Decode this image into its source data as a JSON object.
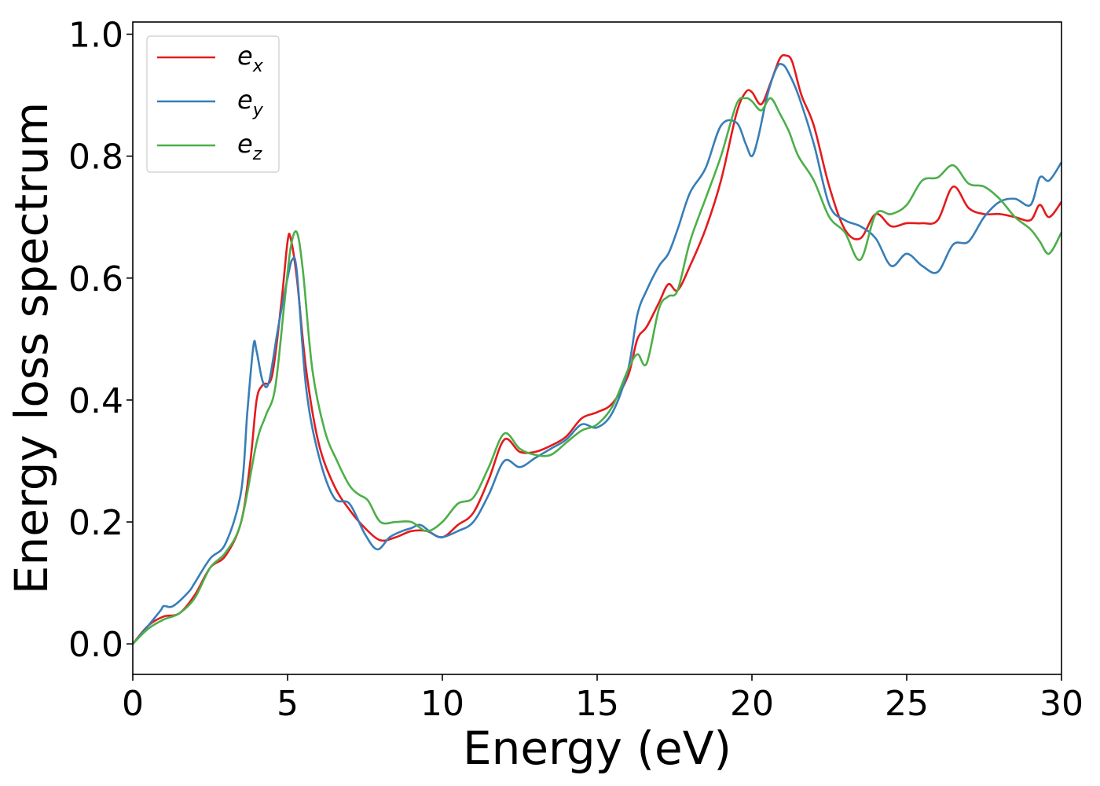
{
  "chart_data": {
    "type": "line",
    "title": "",
    "xlabel": "Energy (eV)",
    "ylabel": "Energy loss spectrum",
    "xlim": [
      0,
      30
    ],
    "ylim": [
      -0.05,
      1.02
    ],
    "xticks": [
      0,
      5,
      10,
      15,
      20,
      25,
      30
    ],
    "xtick_labels": [
      "0",
      "5",
      "10",
      "15",
      "20",
      "25",
      "30"
    ],
    "yticks": [
      0.0,
      0.2,
      0.4,
      0.6,
      0.8,
      1.0
    ],
    "ytick_labels": [
      "0.0",
      "0.2",
      "0.4",
      "0.6",
      "0.8",
      "1.0"
    ],
    "grid": false,
    "legend_position": "top-left",
    "series": [
      {
        "name": "e_x",
        "label_base": "e",
        "label_sub": "x",
        "color": "#e41a1c",
        "x": [
          0,
          0.5,
          1.0,
          1.5,
          2.0,
          2.5,
          3.0,
          3.5,
          3.8,
          4.0,
          4.2,
          4.5,
          4.8,
          5.0,
          5.1,
          5.3,
          5.6,
          6.0,
          6.5,
          7.0,
          7.5,
          8.0,
          8.5,
          9.0,
          9.5,
          10.0,
          10.5,
          11.0,
          11.5,
          12.0,
          12.5,
          13.0,
          13.5,
          14.0,
          14.5,
          15.0,
          15.5,
          16.0,
          16.3,
          16.6,
          17.0,
          17.3,
          17.6,
          18.0,
          18.5,
          19.0,
          19.5,
          19.8,
          20.0,
          20.3,
          20.6,
          20.9,
          21.1,
          21.3,
          21.6,
          22.0,
          22.5,
          23.0,
          23.5,
          24.0,
          24.5,
          25.0,
          25.5,
          26.0,
          26.5,
          27.0,
          27.5,
          28.0,
          28.5,
          29.0,
          29.3,
          29.6,
          30.0
        ],
        "values": [
          0.0,
          0.03,
          0.045,
          0.05,
          0.08,
          0.125,
          0.145,
          0.2,
          0.3,
          0.4,
          0.425,
          0.44,
          0.56,
          0.66,
          0.665,
          0.6,
          0.45,
          0.33,
          0.26,
          0.22,
          0.19,
          0.17,
          0.175,
          0.185,
          0.185,
          0.175,
          0.195,
          0.215,
          0.27,
          0.335,
          0.315,
          0.315,
          0.325,
          0.34,
          0.37,
          0.38,
          0.395,
          0.44,
          0.5,
          0.52,
          0.56,
          0.59,
          0.58,
          0.62,
          0.68,
          0.76,
          0.87,
          0.905,
          0.905,
          0.885,
          0.92,
          0.96,
          0.965,
          0.955,
          0.9,
          0.85,
          0.75,
          0.68,
          0.665,
          0.705,
          0.685,
          0.69,
          0.69,
          0.695,
          0.75,
          0.715,
          0.705,
          0.705,
          0.7,
          0.695,
          0.72,
          0.7,
          0.725
        ]
      },
      {
        "name": "e_y",
        "label_base": "e",
        "label_sub": "y",
        "color": "#377eb8",
        "x": [
          0,
          0.5,
          0.9,
          1.0,
          1.3,
          1.8,
          2.0,
          2.5,
          3.0,
          3.5,
          3.7,
          3.9,
          4.0,
          4.2,
          4.4,
          4.7,
          5.0,
          5.15,
          5.3,
          5.6,
          6.0,
          6.5,
          7.0,
          7.5,
          7.9,
          8.3,
          8.7,
          9.0,
          9.3,
          9.7,
          10.0,
          10.5,
          11.0,
          11.5,
          12.0,
          12.5,
          13.0,
          13.5,
          14.0,
          14.5,
          15.0,
          15.5,
          16.0,
          16.3,
          16.6,
          17.0,
          17.3,
          17.6,
          18.0,
          18.5,
          19.0,
          19.5,
          19.8,
          20.0,
          20.2,
          20.5,
          20.8,
          21.0,
          21.2,
          21.5,
          22.0,
          22.5,
          23.0,
          23.5,
          24.0,
          24.5,
          25.0,
          25.5,
          26.0,
          26.5,
          27.0,
          27.5,
          28.0,
          28.5,
          29.0,
          29.3,
          29.6,
          30.0
        ],
        "values": [
          0.0,
          0.03,
          0.055,
          0.062,
          0.062,
          0.085,
          0.1,
          0.14,
          0.165,
          0.25,
          0.38,
          0.49,
          0.48,
          0.43,
          0.43,
          0.52,
          0.6,
          0.63,
          0.61,
          0.42,
          0.31,
          0.24,
          0.23,
          0.18,
          0.155,
          0.175,
          0.185,
          0.19,
          0.195,
          0.18,
          0.175,
          0.185,
          0.2,
          0.245,
          0.3,
          0.29,
          0.305,
          0.32,
          0.335,
          0.36,
          0.355,
          0.38,
          0.45,
          0.54,
          0.58,
          0.62,
          0.64,
          0.68,
          0.74,
          0.78,
          0.85,
          0.855,
          0.82,
          0.8,
          0.83,
          0.9,
          0.945,
          0.95,
          0.935,
          0.9,
          0.82,
          0.72,
          0.695,
          0.685,
          0.665,
          0.62,
          0.64,
          0.62,
          0.61,
          0.655,
          0.66,
          0.7,
          0.725,
          0.73,
          0.72,
          0.765,
          0.76,
          0.79
        ]
      },
      {
        "name": "e_z",
        "label_base": "e",
        "label_sub": "z",
        "color": "#4daf4a",
        "x": [
          0,
          0.5,
          1.0,
          1.5,
          2.0,
          2.5,
          3.0,
          3.5,
          4.0,
          4.3,
          4.6,
          4.9,
          5.1,
          5.3,
          5.5,
          5.8,
          6.2,
          6.6,
          7.0,
          7.3,
          7.6,
          8.0,
          8.5,
          9.0,
          9.5,
          10.0,
          10.5,
          11.0,
          11.5,
          12.0,
          12.5,
          13.0,
          13.5,
          14.0,
          14.5,
          15.0,
          15.5,
          16.0,
          16.3,
          16.6,
          17.0,
          17.3,
          17.6,
          18.0,
          18.5,
          19.0,
          19.5,
          19.8,
          20.0,
          20.3,
          20.6,
          20.9,
          21.2,
          21.5,
          22.0,
          22.5,
          23.0,
          23.5,
          24.0,
          24.5,
          25.0,
          25.5,
          26.0,
          26.5,
          27.0,
          27.5,
          28.0,
          28.5,
          29.0,
          29.3,
          29.6,
          30.0
        ],
        "values": [
          0.0,
          0.025,
          0.04,
          0.05,
          0.075,
          0.125,
          0.15,
          0.2,
          0.33,
          0.375,
          0.42,
          0.56,
          0.65,
          0.675,
          0.61,
          0.45,
          0.35,
          0.3,
          0.26,
          0.245,
          0.235,
          0.2,
          0.2,
          0.2,
          0.185,
          0.2,
          0.23,
          0.24,
          0.29,
          0.345,
          0.32,
          0.31,
          0.31,
          0.33,
          0.35,
          0.36,
          0.39,
          0.45,
          0.475,
          0.46,
          0.55,
          0.57,
          0.58,
          0.66,
          0.73,
          0.8,
          0.885,
          0.895,
          0.89,
          0.875,
          0.895,
          0.87,
          0.84,
          0.8,
          0.76,
          0.7,
          0.675,
          0.63,
          0.705,
          0.705,
          0.72,
          0.76,
          0.765,
          0.785,
          0.755,
          0.75,
          0.73,
          0.7,
          0.68,
          0.66,
          0.64,
          0.675
        ]
      }
    ]
  }
}
